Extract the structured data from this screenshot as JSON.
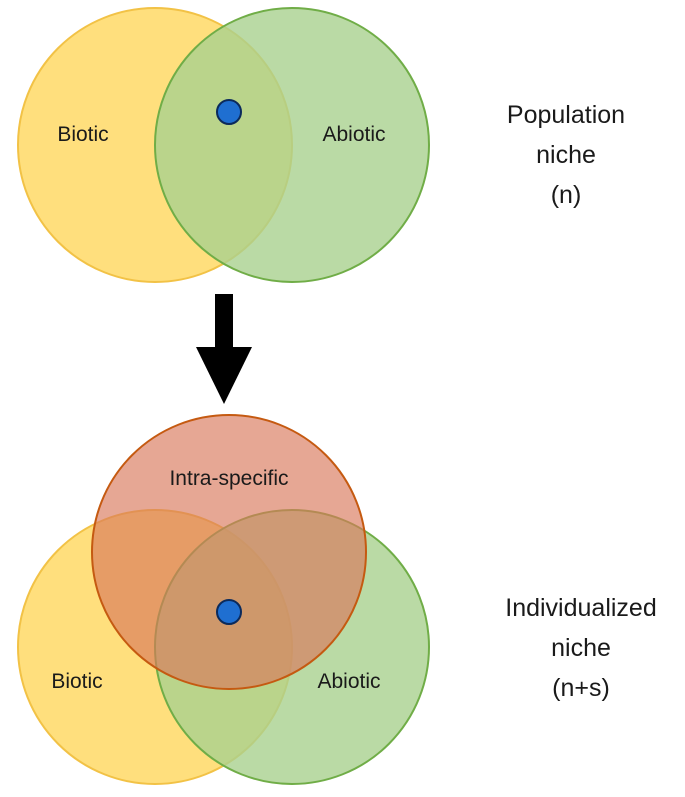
{
  "top_diagram": {
    "left_label": "Biotic",
    "right_label": "Abiotic",
    "side_title_line1": "Population",
    "side_title_line2": "niche",
    "side_title_line3": "(n)"
  },
  "bottom_diagram": {
    "top_label": "Intra-specific",
    "left_label": "Biotic",
    "right_label": "Abiotic",
    "side_title_line1": "Individualized",
    "side_title_line2": "niche",
    "side_title_line3": "(n+s)"
  },
  "colors": {
    "biotic_fill": "#FFD966",
    "biotic_stroke": "#F2C246",
    "abiotic_fill": "#A9D18E",
    "abiotic_stroke": "#70AD47",
    "intra_fill": "#D9785A",
    "intra_stroke": "#C55A11",
    "dot_fill": "#1F6FD1",
    "dot_stroke": "#0B2A5B",
    "arrow": "#000000"
  }
}
